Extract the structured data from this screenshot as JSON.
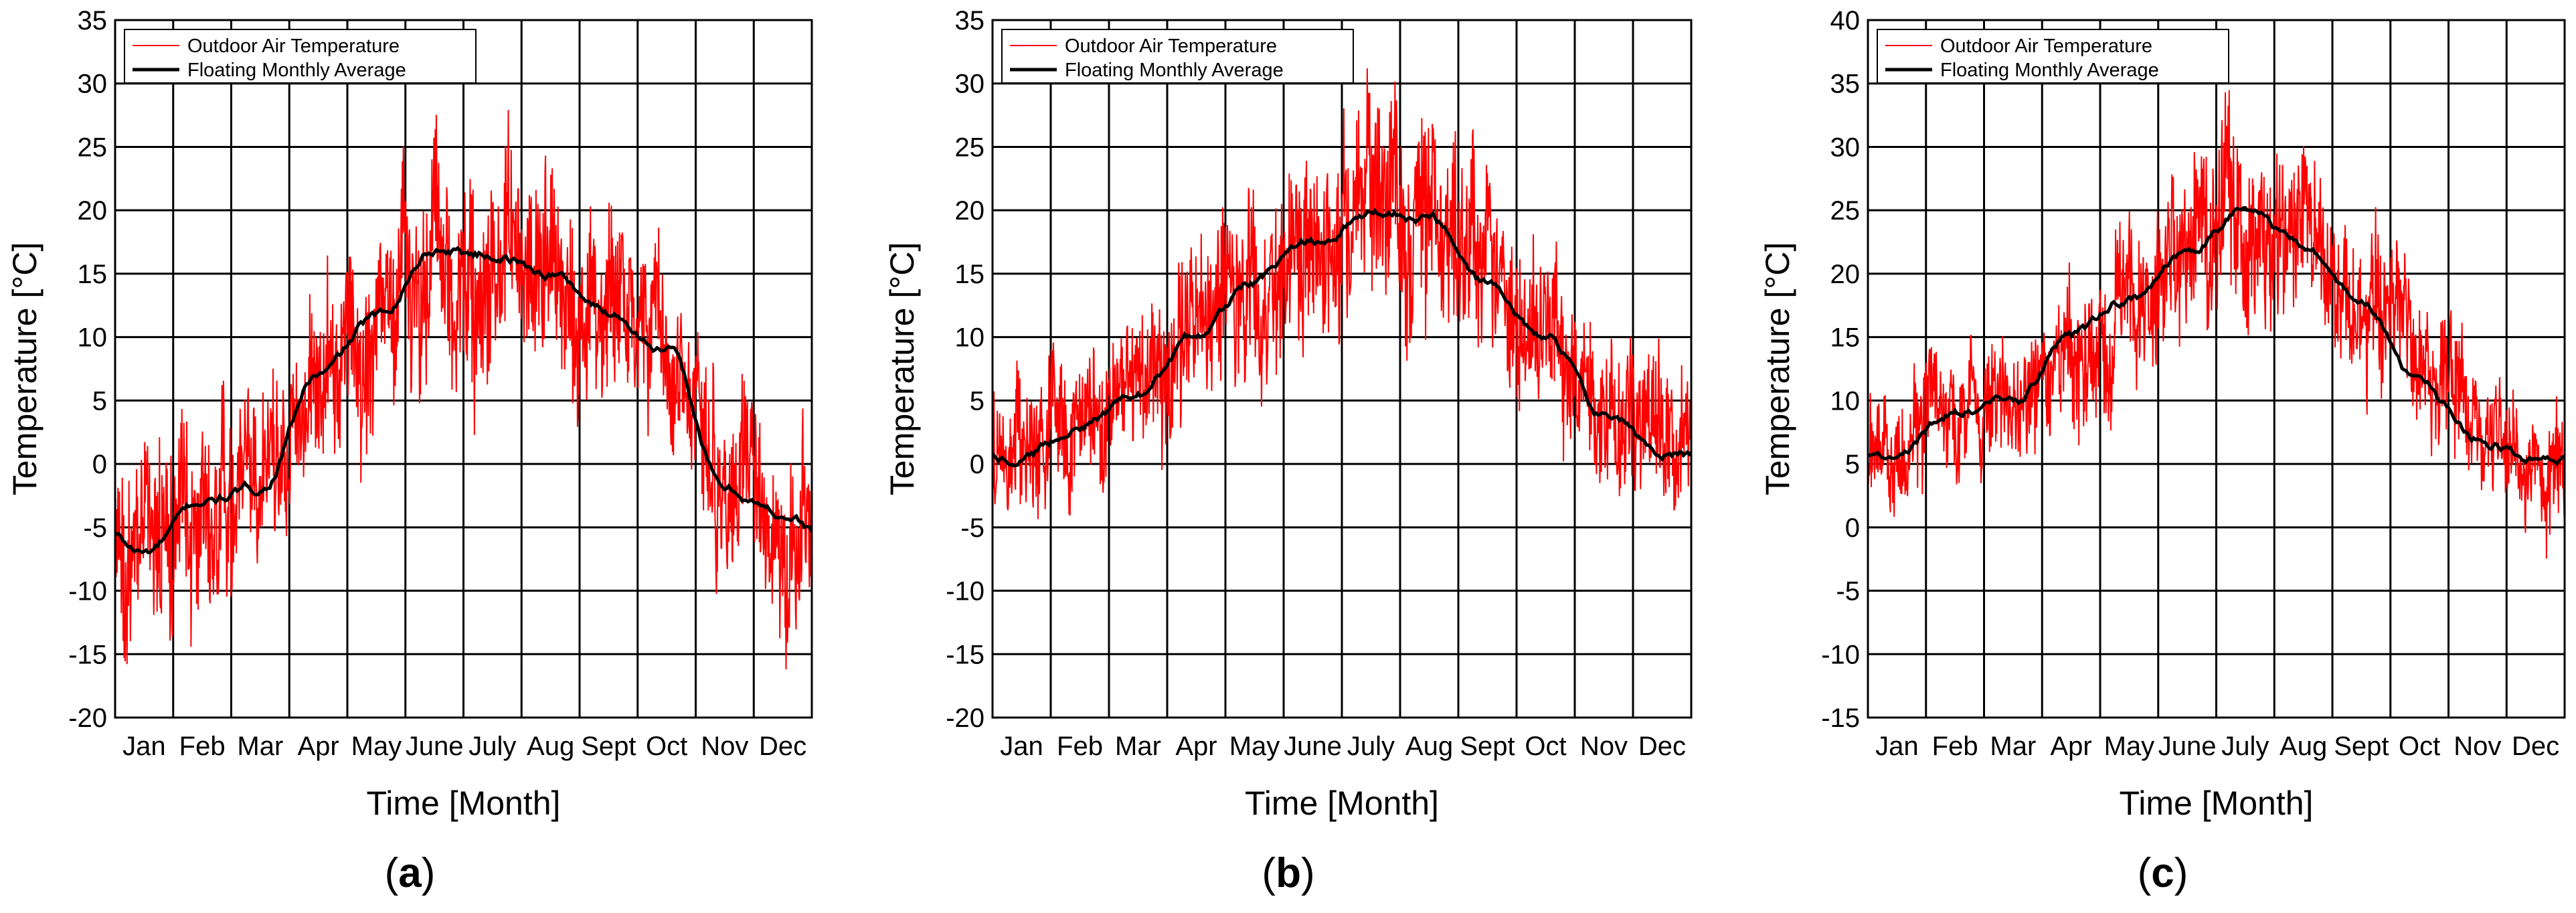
{
  "chart_data": [
    {
      "type": "line",
      "panel_label": "a",
      "xlabel": "Time [Month]",
      "ylabel": "Temperature [°C]",
      "ylim": [
        -20,
        35
      ],
      "yticks": [
        -20,
        -15,
        -10,
        -5,
        0,
        5,
        10,
        15,
        20,
        25,
        30,
        35
      ],
      "grid": true,
      "legend_position": "top-left",
      "categories": [
        "Jan",
        "Feb",
        "Mar",
        "Apr",
        "May",
        "June",
        "July",
        "Aug",
        "Sept",
        "Oct",
        "Nov",
        "Dec"
      ],
      "series": [
        {
          "name": "Outdoor Air Temperature",
          "color": "#ff0000",
          "monthly_mean": [
            -6,
            -3,
            0,
            8,
            11,
            17,
            17,
            15,
            13,
            9,
            -2,
            -5
          ],
          "monthly_amplitude": [
            8,
            8,
            7,
            8,
            8,
            9,
            10,
            8,
            8,
            7,
            8,
            8
          ]
        },
        {
          "name": "Floating Monthly Average",
          "color": "#000000",
          "monthly_values": [
            -7,
            -3,
            -2,
            7,
            11.5,
            17,
            16.5,
            15,
            12,
            9,
            -2,
            -4
          ]
        }
      ]
    },
    {
      "type": "line",
      "panel_label": "b",
      "xlabel": "Time [Month]",
      "ylabel": "Temperature [°C]",
      "ylim": [
        -20,
        35
      ],
      "yticks": [
        -20,
        -15,
        -10,
        -5,
        0,
        5,
        10,
        15,
        20,
        25,
        30,
        35
      ],
      "grid": true,
      "legend_position": "top-left",
      "categories": [
        "Jan",
        "Feb",
        "Mar",
        "Apr",
        "May",
        "June",
        "July",
        "Aug",
        "Sept",
        "Oct",
        "Nov",
        "Dec"
      ],
      "series": [
        {
          "name": "Outdoor Air Temperature",
          "color": "#ff0000",
          "monthly_mean": [
            0,
            3,
            6,
            11,
            14,
            17,
            20,
            20,
            17,
            11,
            5,
            2
          ],
          "monthly_amplitude": [
            6,
            6,
            6,
            8,
            8,
            8,
            9,
            9,
            8,
            7,
            6,
            7
          ]
        },
        {
          "name": "Floating Monthly Average",
          "color": "#000000",
          "monthly_values": [
            0.5,
            3,
            5.5,
            10,
            14.5,
            17.5,
            20,
            19.5,
            14,
            10,
            4,
            1
          ]
        }
      ]
    },
    {
      "type": "line",
      "panel_label": "c",
      "xlabel": "Time [Month]",
      "ylabel": "Temperature [°C]",
      "ylim": [
        -15,
        40
      ],
      "yticks": [
        -15,
        -10,
        -5,
        0,
        5,
        10,
        15,
        20,
        25,
        30,
        35,
        40
      ],
      "grid": true,
      "legend_position": "top-left",
      "categories": [
        "Jan",
        "Feb",
        "Mar",
        "Apr",
        "May",
        "June",
        "July",
        "Aug",
        "Sept",
        "Oct",
        "Nov",
        "Dec"
      ],
      "series": [
        {
          "name": "Outdoor Air Temperature",
          "color": "#ff0000",
          "monthly_mean": [
            6,
            9,
            10,
            14,
            18,
            22,
            25,
            23,
            18,
            12,
            8,
            5
          ],
          "monthly_amplitude": [
            5,
            5,
            5,
            6,
            7,
            7,
            8,
            7,
            7,
            6,
            5,
            5
          ]
        },
        {
          "name": "Floating Monthly Average",
          "color": "#000000",
          "monthly_values": [
            6,
            9,
            10,
            15,
            18,
            22,
            25,
            22.5,
            18,
            11,
            7,
            5
          ]
        }
      ]
    }
  ]
}
